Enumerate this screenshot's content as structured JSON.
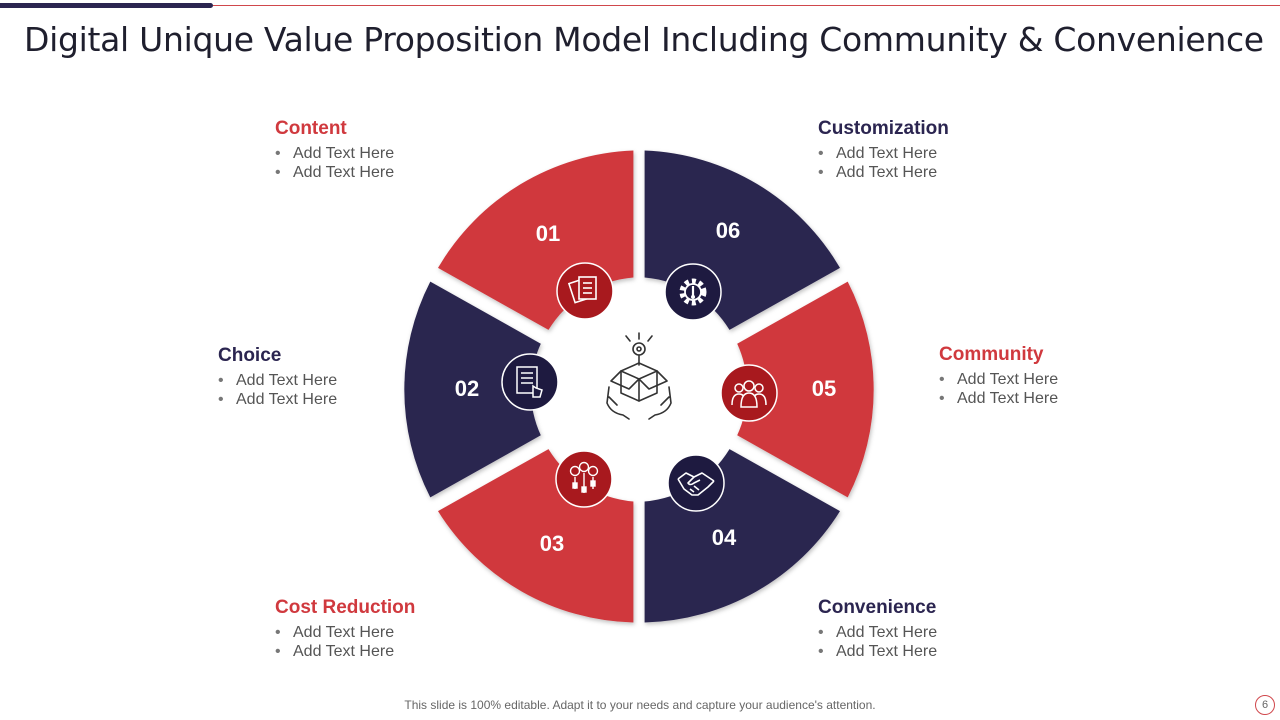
{
  "title": "Digital Unique Value Proposition Model Including Community & Convenience",
  "segments": [
    {
      "number": "01",
      "label": "Content",
      "bullets": [
        "Add Text Here",
        "Add Text Here"
      ],
      "color": "#d0393e",
      "icon": "document-icon"
    },
    {
      "number": "02",
      "label": "Choice",
      "bullets": [
        "Add Text Here",
        "Add Text Here"
      ],
      "color": "#2b2550",
      "icon": "checklist-icon"
    },
    {
      "number": "03",
      "label": "Cost Reduction",
      "bullets": [
        "Add Text Here",
        "Add Text Here"
      ],
      "color": "#d0393e",
      "icon": "coins-icon"
    },
    {
      "number": "04",
      "label": "Convenience",
      "bullets": [
        "Add Text Here",
        "Add Text Here"
      ],
      "color": "#2b2550",
      "icon": "handshake-icon"
    },
    {
      "number": "05",
      "label": "Community",
      "bullets": [
        "Add Text Here",
        "Add Text Here"
      ],
      "color": "#d0393e",
      "icon": "people-icon"
    },
    {
      "number": "06",
      "label": "Customization",
      "bullets": [
        "Add Text Here",
        "Add Text Here"
      ],
      "color": "#2b2550",
      "icon": "gear-icon"
    }
  ],
  "center_icon": "value-box-hands-icon",
  "footer": "This slide is 100% editable. Adapt it to your needs and capture your audience's attention.",
  "page_number": "6"
}
